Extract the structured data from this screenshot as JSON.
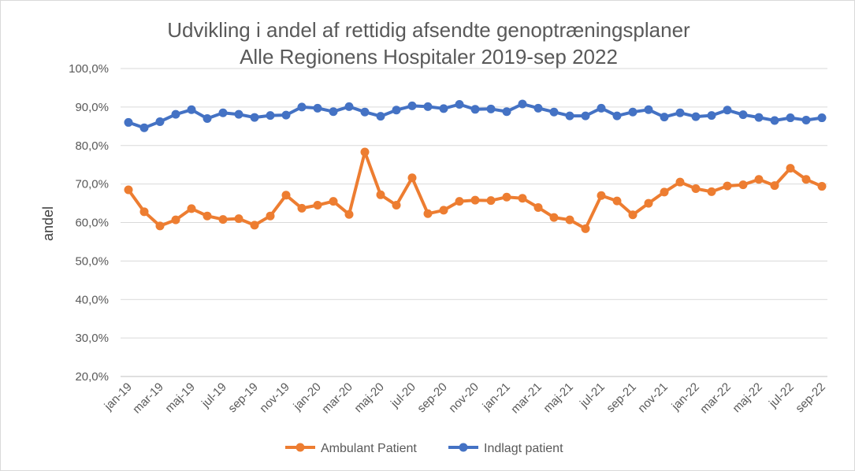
{
  "chart_data": {
    "type": "line",
    "title": "Udvikling i andel af rettidig afsendte genoptræningsplaner",
    "subtitle": "Alle Regionens Hospitaler 2019-sep 2022",
    "ylabel": "andel",
    "xlabel": "",
    "ylim": [
      20,
      100
    ],
    "y_ticks": [
      "20,0%",
      "30,0%",
      "40,0%",
      "50,0%",
      "60,0%",
      "70,0%",
      "80,0%",
      "90,0%",
      "100,0%"
    ],
    "grid": true,
    "legend_position": "bottom",
    "x_tick_labels": [
      "jan-19",
      "mar-19",
      "maj-19",
      "jul-19",
      "sep-19",
      "nov-19",
      "jan-20",
      "mar-20",
      "maj-20",
      "jul-20",
      "sep-20",
      "nov-20",
      "jan-21",
      "mar-21",
      "maj-21",
      "jul-21",
      "sep-21",
      "nov-21",
      "jan-22",
      "mar-22",
      "maj-22",
      "jul-22",
      "sep-22"
    ],
    "x": [
      "jan-19",
      "feb-19",
      "mar-19",
      "apr-19",
      "maj-19",
      "jun-19",
      "jul-19",
      "aug-19",
      "sep-19",
      "okt-19",
      "nov-19",
      "dec-19",
      "jan-20",
      "feb-20",
      "mar-20",
      "apr-20",
      "maj-20",
      "jun-20",
      "jul-20",
      "aug-20",
      "sep-20",
      "okt-20",
      "nov-20",
      "dec-20",
      "jan-21",
      "feb-21",
      "mar-21",
      "apr-21",
      "maj-21",
      "jun-21",
      "jul-21",
      "aug-21",
      "sep-21",
      "okt-21",
      "nov-21",
      "dec-21",
      "jan-22",
      "feb-22",
      "mar-22",
      "apr-22",
      "maj-22",
      "jun-22",
      "jul-22",
      "aug-22",
      "sep-22"
    ],
    "series": [
      {
        "name": "Ambulant Patient",
        "color": "#ed7d31",
        "values": [
          68.5,
          62.8,
          59.1,
          60.7,
          63.6,
          61.7,
          60.8,
          61.0,
          59.3,
          61.7,
          67.1,
          63.7,
          64.5,
          65.5,
          62.1,
          78.3,
          67.2,
          64.5,
          71.6,
          62.3,
          63.2,
          65.5,
          65.8,
          65.7,
          66.6,
          66.3,
          63.9,
          61.3,
          60.7,
          58.4,
          67.0,
          65.6,
          62.0,
          65.0,
          67.9,
          70.5,
          68.8,
          68.0,
          69.5,
          69.8,
          71.2,
          69.6,
          74.1,
          71.2,
          69.4
        ]
      },
      {
        "name": "Indlagt patient",
        "color": "#4472c4",
        "values": [
          86.0,
          84.6,
          86.2,
          88.1,
          89.3,
          87.0,
          88.5,
          88.1,
          87.3,
          87.8,
          87.9,
          90.0,
          89.7,
          88.8,
          90.1,
          88.7,
          87.6,
          89.2,
          90.3,
          90.1,
          89.6,
          90.7,
          89.4,
          89.5,
          88.8,
          90.8,
          89.7,
          88.7,
          87.7,
          87.7,
          89.7,
          87.7,
          88.7,
          89.3,
          87.4,
          88.5,
          87.5,
          87.8,
          89.2,
          88.0,
          87.3,
          86.5,
          87.2,
          86.6,
          87.2
        ]
      }
    ]
  }
}
